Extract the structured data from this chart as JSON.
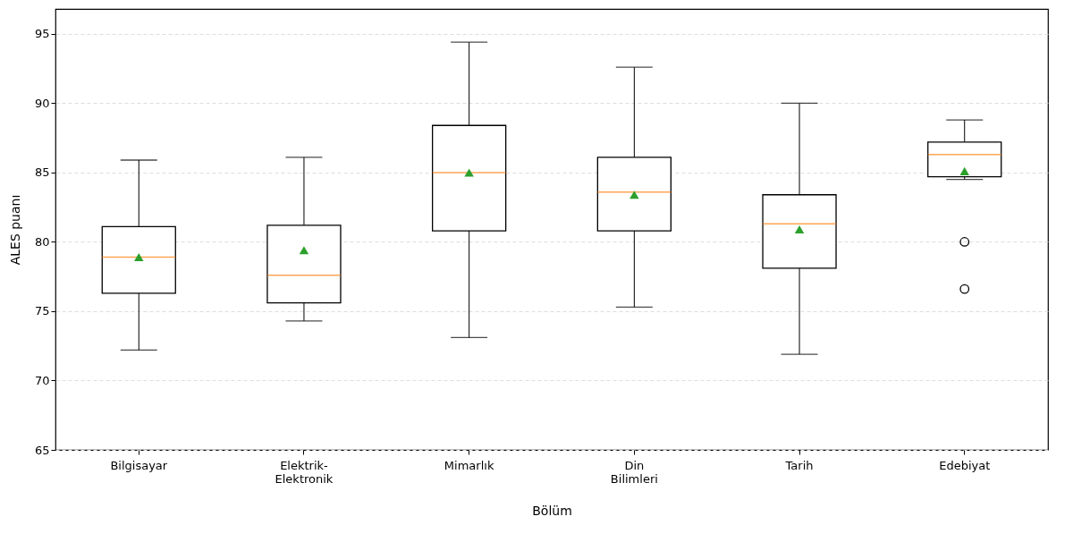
{
  "chart_data": {
    "type": "box",
    "xlabel": "Bölüm",
    "ylabel": "ALES puanı",
    "categories": [
      "Bilgisayar",
      "Elektrik-Elektronik",
      "Mimarlık",
      "Din Bilimleri",
      "Tarih",
      "Edebiyat"
    ],
    "boxes": [
      {
        "low": 72.2,
        "q1": 76.3,
        "median": 78.9,
        "q3": 81.1,
        "high": 85.9,
        "mean": 78.9
      },
      {
        "low": 74.3,
        "q1": 75.6,
        "median": 77.6,
        "q3": 81.2,
        "high": 86.1,
        "mean": 79.4
      },
      {
        "low": 73.1,
        "q1": 80.8,
        "median": 85.0,
        "q3": 88.4,
        "high": 94.4,
        "mean": 85.0
      },
      {
        "low": 75.3,
        "q1": 80.8,
        "median": 83.6,
        "q3": 86.1,
        "high": 92.6,
        "mean": 83.4
      },
      {
        "low": 71.9,
        "q1": 78.1,
        "median": 81.3,
        "q3": 83.4,
        "high": 90.0,
        "mean": 80.9
      },
      {
        "low": 84.5,
        "q1": 84.7,
        "median": 86.3,
        "q3": 87.2,
        "high": 88.8,
        "mean": 85.1,
        "outliers": [
          80.0,
          76.6
        ]
      }
    ],
    "ylim": [
      65,
      96.8
    ],
    "yticks": [
      65,
      70,
      75,
      80,
      85,
      90,
      95
    ],
    "grid": "y"
  }
}
